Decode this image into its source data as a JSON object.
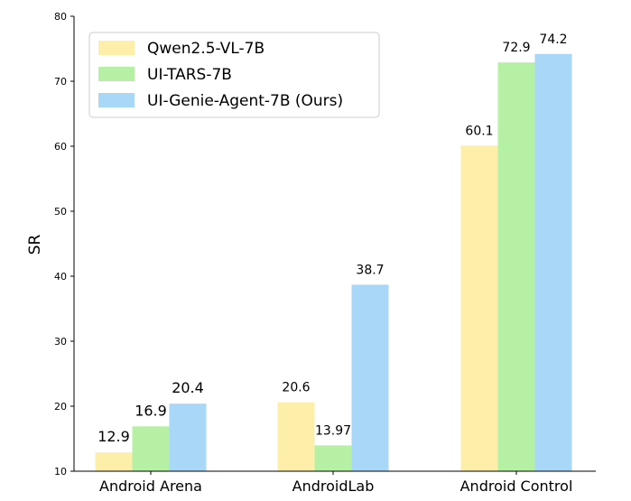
{
  "chart_data": {
    "type": "bar",
    "title": "",
    "xlabel": "",
    "ylabel": "SR",
    "ylim": [
      10,
      80
    ],
    "yticks": [
      10,
      20,
      30,
      40,
      50,
      60,
      70,
      80
    ],
    "grid": false,
    "legend_position": "top-left",
    "categories": [
      "Android Arena",
      "AndroidLab",
      "Android Control"
    ],
    "series": [
      {
        "name": "Qwen2.5-VL-7B",
        "color": "#fdeeaa",
        "values": [
          12.9,
          20.6,
          60.1
        ],
        "labels": [
          "12.9",
          "20.6",
          "60.1"
        ]
      },
      {
        "name": "UI-TARS-7B",
        "color": "#b5f0a4",
        "values": [
          16.9,
          13.97,
          72.9
        ],
        "labels": [
          "16.9",
          "13.97",
          "72.9"
        ]
      },
      {
        "name": "UI-Genie-Agent-7B (Ours)",
        "color": "#a9d7f7",
        "values": [
          20.4,
          38.7,
          74.2
        ],
        "labels": [
          "20.4",
          "38.7",
          "74.2"
        ]
      }
    ]
  }
}
